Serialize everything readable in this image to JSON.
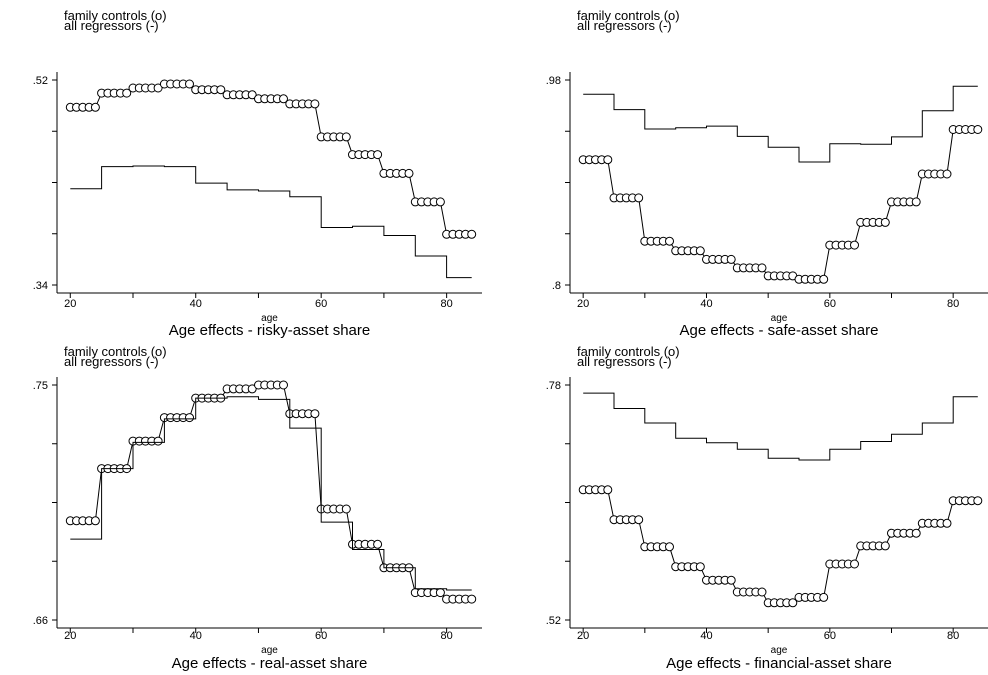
{
  "chart_data": [
    {
      "type": "line",
      "title": "Age effects - risky-asset share",
      "xlabel": "age",
      "legend": [
        "family controls (o)",
        "all regressors (-)"
      ],
      "xlim": [
        19,
        85
      ],
      "xticks": [
        20,
        40,
        60,
        80
      ],
      "ylim": [
        0.34,
        0.52
      ],
      "yticks": [
        0.34,
        0.52
      ],
      "ytick_labels": [
        ".34",
        ".52"
      ],
      "series": [
        {
          "name": "family controls (o)",
          "marker": "circle",
          "x": [
            20,
            21,
            22,
            23,
            24,
            25,
            26,
            27,
            28,
            29,
            30,
            31,
            32,
            33,
            34,
            35,
            36,
            37,
            38,
            39,
            40,
            41,
            42,
            43,
            44,
            45,
            46,
            47,
            48,
            49,
            50,
            51,
            52,
            53,
            54,
            55,
            56,
            57,
            58,
            59,
            60,
            61,
            62,
            63,
            64,
            65,
            66,
            67,
            68,
            69,
            70,
            71,
            72,
            73,
            74,
            75,
            76,
            77,
            78,
            79,
            80,
            81,
            82,
            83,
            84
          ],
          "values": [
            0.496,
            0.496,
            0.496,
            0.496,
            0.496,
            0.5085,
            0.5085,
            0.5085,
            0.5085,
            0.5085,
            0.513,
            0.513,
            0.513,
            0.513,
            0.513,
            0.5165,
            0.5165,
            0.5165,
            0.5165,
            0.5165,
            0.5115,
            0.5115,
            0.5115,
            0.5115,
            0.5115,
            0.507,
            0.507,
            0.507,
            0.507,
            0.507,
            0.5035,
            0.5035,
            0.5035,
            0.5035,
            0.5035,
            0.499,
            0.499,
            0.499,
            0.499,
            0.499,
            0.47,
            0.47,
            0.47,
            0.47,
            0.47,
            0.4545,
            0.4545,
            0.4545,
            0.4545,
            0.4545,
            0.438,
            0.438,
            0.438,
            0.438,
            0.438,
            0.413,
            0.413,
            0.413,
            0.413,
            0.413,
            0.3845,
            0.3845,
            0.3845,
            0.3845,
            0.3845
          ]
        },
        {
          "name": "all regressors (-)",
          "marker": "none",
          "x": [
            20,
            25,
            30,
            35,
            40,
            45,
            50,
            55,
            60,
            65,
            70,
            75,
            80,
            84
          ],
          "values": [
            0.4245,
            0.444,
            0.4445,
            0.444,
            0.4295,
            0.4235,
            0.4225,
            0.4175,
            0.3905,
            0.3915,
            0.3835,
            0.3655,
            0.3465,
            0.3465
          ]
        }
      ]
    },
    {
      "type": "line",
      "title": "Age effects - safe-asset share",
      "xlabel": "age",
      "legend": [
        "family controls (o)",
        "all regressors (-)"
      ],
      "xlim": [
        19,
        85
      ],
      "xticks": [
        20,
        40,
        60,
        80
      ],
      "ylim": [
        0.8,
        0.98
      ],
      "yticks": [
        0.8,
        0.98
      ],
      "ytick_labels": [
        ".8",
        ".98"
      ],
      "series": [
        {
          "name": "family controls (o)",
          "marker": "circle",
          "x": [
            20,
            21,
            22,
            23,
            24,
            25,
            26,
            27,
            28,
            29,
            30,
            31,
            32,
            33,
            34,
            35,
            36,
            37,
            38,
            39,
            40,
            41,
            42,
            43,
            44,
            45,
            46,
            47,
            48,
            49,
            50,
            51,
            52,
            53,
            54,
            55,
            56,
            57,
            58,
            59,
            60,
            61,
            62,
            63,
            64,
            65,
            66,
            67,
            68,
            69,
            70,
            71,
            72,
            73,
            74,
            75,
            76,
            77,
            78,
            79,
            80,
            81,
            82,
            83,
            84
          ],
          "values": [
            0.91,
            0.91,
            0.91,
            0.91,
            0.91,
            0.8765,
            0.8765,
            0.8765,
            0.8765,
            0.8765,
            0.8385,
            0.8385,
            0.8385,
            0.8385,
            0.8385,
            0.83,
            0.83,
            0.83,
            0.83,
            0.83,
            0.8225,
            0.8225,
            0.8225,
            0.8225,
            0.8225,
            0.815,
            0.815,
            0.815,
            0.815,
            0.815,
            0.808,
            0.808,
            0.808,
            0.808,
            0.808,
            0.805,
            0.805,
            0.805,
            0.805,
            0.805,
            0.835,
            0.835,
            0.835,
            0.835,
            0.835,
            0.855,
            0.855,
            0.855,
            0.855,
            0.855,
            0.873,
            0.873,
            0.873,
            0.873,
            0.873,
            0.8975,
            0.8975,
            0.8975,
            0.8975,
            0.8975,
            0.9365,
            0.9365,
            0.9365,
            0.9365,
            0.9365
          ]
        },
        {
          "name": "all regressors (-)",
          "marker": "none",
          "x": [
            20,
            25,
            30,
            35,
            40,
            45,
            50,
            55,
            60,
            65,
            70,
            75,
            80,
            84
          ],
          "values": [
            0.9675,
            0.954,
            0.937,
            0.938,
            0.9395,
            0.9305,
            0.921,
            0.908,
            0.924,
            0.9235,
            0.93,
            0.953,
            0.9745,
            0.9745
          ]
        }
      ]
    },
    {
      "type": "line",
      "title": "Age effects - real-asset share",
      "xlabel": "age",
      "legend": [
        "family controls (o)",
        "all regressors (-)"
      ],
      "xlim": [
        19,
        85
      ],
      "xticks": [
        20,
        40,
        60,
        80
      ],
      "ylim": [
        0.66,
        0.75
      ],
      "yticks": [
        0.66,
        0.75
      ],
      "ytick_labels": [
        ".66",
        ".75"
      ],
      "series": [
        {
          "name": "family controls (o)",
          "marker": "circle",
          "x": [
            20,
            21,
            22,
            23,
            24,
            25,
            26,
            27,
            28,
            29,
            30,
            31,
            32,
            33,
            34,
            35,
            36,
            37,
            38,
            39,
            40,
            41,
            42,
            43,
            44,
            45,
            46,
            47,
            48,
            49,
            50,
            51,
            52,
            53,
            54,
            55,
            56,
            57,
            58,
            59,
            60,
            61,
            62,
            63,
            64,
            65,
            66,
            67,
            68,
            69,
            70,
            71,
            72,
            73,
            74,
            75,
            76,
            77,
            78,
            79,
            80,
            81,
            82,
            83,
            84
          ],
          "values": [
            0.698,
            0.698,
            0.698,
            0.698,
            0.698,
            0.718,
            0.718,
            0.718,
            0.718,
            0.718,
            0.7285,
            0.7285,
            0.7285,
            0.7285,
            0.7285,
            0.7375,
            0.7375,
            0.7375,
            0.7375,
            0.7375,
            0.745,
            0.745,
            0.745,
            0.745,
            0.745,
            0.7485,
            0.7485,
            0.7485,
            0.7485,
            0.7485,
            0.75,
            0.75,
            0.75,
            0.75,
            0.75,
            0.739,
            0.739,
            0.739,
            0.739,
            0.739,
            0.7025,
            0.7025,
            0.7025,
            0.7025,
            0.7025,
            0.689,
            0.689,
            0.689,
            0.689,
            0.689,
            0.68,
            0.68,
            0.68,
            0.68,
            0.68,
            0.6705,
            0.6705,
            0.6705,
            0.6705,
            0.6705,
            0.668,
            0.668,
            0.668,
            0.668,
            0.668
          ]
        },
        {
          "name": "all regressors (-)",
          "marker": "none",
          "x": [
            20,
            25,
            30,
            35,
            40,
            45,
            50,
            55,
            60,
            65,
            70,
            75,
            80,
            84
          ],
          "values": [
            0.691,
            0.718,
            0.728,
            0.737,
            0.745,
            0.7455,
            0.7445,
            0.7335,
            0.6975,
            0.687,
            0.68,
            0.672,
            0.6715,
            0.6715
          ]
        }
      ]
    },
    {
      "type": "line",
      "title": "Age effects - financial-asset share",
      "xlabel": "age",
      "legend": [
        "family controls (o)",
        "all regressors (-)"
      ],
      "xlim": [
        19,
        85
      ],
      "xticks": [
        20,
        40,
        60,
        80
      ],
      "ylim": [
        0.52,
        0.78
      ],
      "yticks": [
        0.52,
        0.78
      ],
      "ytick_labels": [
        ".52",
        ".78"
      ],
      "series": [
        {
          "name": "family controls (o)",
          "marker": "circle",
          "x": [
            20,
            21,
            22,
            23,
            24,
            25,
            26,
            27,
            28,
            29,
            30,
            31,
            32,
            33,
            34,
            35,
            36,
            37,
            38,
            39,
            40,
            41,
            42,
            43,
            44,
            45,
            46,
            47,
            48,
            49,
            50,
            51,
            52,
            53,
            54,
            55,
            56,
            57,
            58,
            59,
            60,
            61,
            62,
            63,
            64,
            65,
            66,
            67,
            68,
            69,
            70,
            71,
            72,
            73,
            74,
            75,
            76,
            77,
            78,
            79,
            80,
            81,
            82,
            83,
            84
          ],
          "values": [
            0.664,
            0.664,
            0.664,
            0.664,
            0.664,
            0.631,
            0.631,
            0.631,
            0.631,
            0.631,
            0.601,
            0.601,
            0.601,
            0.601,
            0.601,
            0.579,
            0.579,
            0.579,
            0.579,
            0.579,
            0.564,
            0.564,
            0.564,
            0.564,
            0.564,
            0.551,
            0.551,
            0.551,
            0.551,
            0.551,
            0.539,
            0.539,
            0.539,
            0.539,
            0.539,
            0.545,
            0.545,
            0.545,
            0.545,
            0.545,
            0.582,
            0.582,
            0.582,
            0.582,
            0.582,
            0.602,
            0.602,
            0.602,
            0.602,
            0.602,
            0.616,
            0.616,
            0.616,
            0.616,
            0.616,
            0.627,
            0.627,
            0.627,
            0.627,
            0.627,
            0.652,
            0.652,
            0.652,
            0.652,
            0.652
          ]
        },
        {
          "name": "all regressors (-)",
          "marker": "none",
          "x": [
            20,
            25,
            30,
            35,
            40,
            45,
            50,
            55,
            60,
            65,
            70,
            75,
            80,
            84
          ],
          "values": [
            0.771,
            0.754,
            0.738,
            0.721,
            0.716,
            0.709,
            0.699,
            0.697,
            0.709,
            0.7175,
            0.7255,
            0.738,
            0.767,
            0.767
          ]
        }
      ]
    }
  ]
}
